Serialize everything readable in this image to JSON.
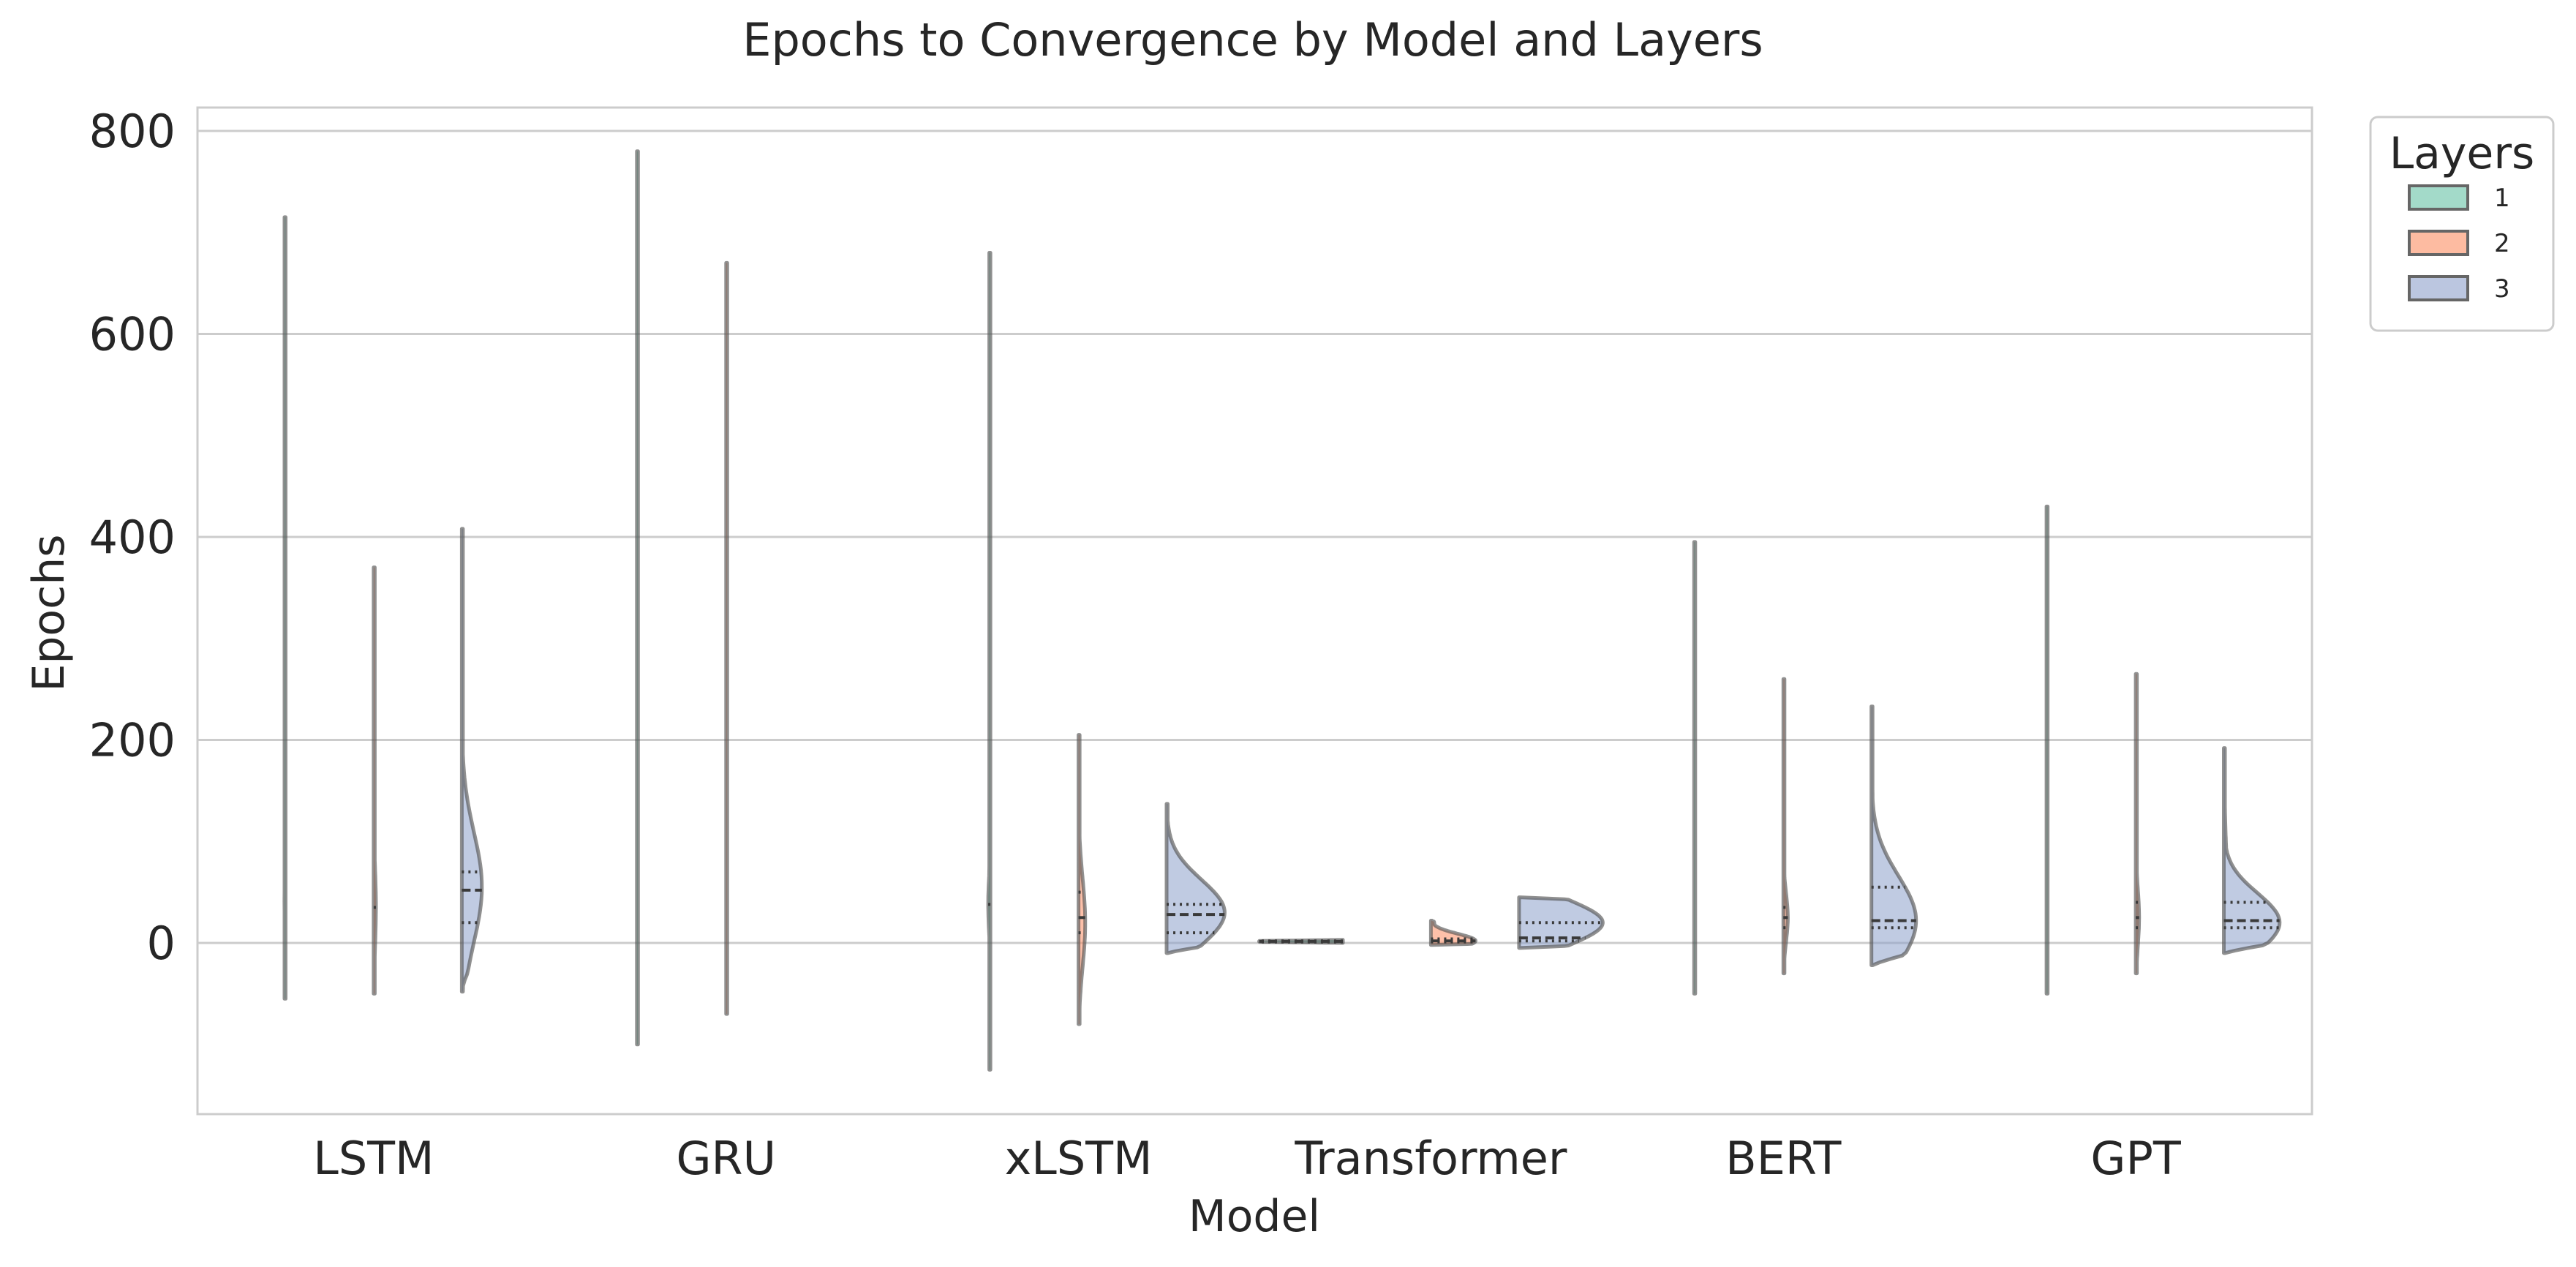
{
  "chart_data": {
    "type": "violin",
    "title": "Epochs to Convergence by Model and Layers",
    "xlabel": "Model",
    "ylabel": "Epochs",
    "categories": [
      "LSTM",
      "GRU",
      "xLSTM",
      "Transformer",
      "BERT",
      "GPT"
    ],
    "ylim": [
      -170,
      830
    ],
    "yticks": [
      0,
      200,
      400,
      600,
      800
    ],
    "grid": true,
    "legend": {
      "title": "Layers",
      "placement": "outside-top-right",
      "entries": [
        {
          "label": "1",
          "color": "#66c2a5"
        },
        {
          "label": "2",
          "color": "#fc8d62"
        },
        {
          "label": "3",
          "color": "#8da0cb"
        }
      ]
    },
    "series": [
      {
        "name": "1",
        "side": "left",
        "color": "#66c2a5",
        "groups": [
          {
            "category": "LSTM",
            "min": -55,
            "max": 715,
            "q1": 25,
            "median": 40,
            "q3": 60,
            "peak": 40,
            "spread": 1
          },
          {
            "category": "GRU",
            "min": -100,
            "max": 780,
            "q1": 20,
            "median": 45,
            "q3": 80,
            "peak": 45,
            "spread": 1
          },
          {
            "category": "xLSTM",
            "min": -125,
            "max": 680,
            "q1": 25,
            "median": 38,
            "q3": 48,
            "peak": 38,
            "spread": 2
          },
          {
            "category": "Transformer",
            "min": 0,
            "max": 3,
            "q1": 1,
            "median": 1.5,
            "q3": 2,
            "peak": 1.5,
            "spread": 200
          },
          {
            "category": "BERT",
            "min": -50,
            "max": 395,
            "q1": 15,
            "median": 25,
            "q3": 35,
            "peak": 25,
            "spread": 1
          },
          {
            "category": "GPT",
            "min": -50,
            "max": 430,
            "q1": 15,
            "median": 30,
            "q3": 45,
            "peak": 30,
            "spread": 1
          }
        ]
      },
      {
        "name": "2",
        "side": "right",
        "color": "#fc8d62",
        "groups": [
          {
            "category": "LSTM",
            "min": -50,
            "max": 370,
            "q1": 20,
            "median": 35,
            "q3": 55,
            "peak": 35,
            "spread": 2
          },
          {
            "category": "GRU",
            "min": -70,
            "max": 670,
            "q1": 20,
            "median": 45,
            "q3": 70,
            "peak": 45,
            "spread": 1
          },
          {
            "category": "xLSTM",
            "min": -80,
            "max": 205,
            "q1": 10,
            "median": 25,
            "q3": 50,
            "peak": 20,
            "spread": 6
          },
          {
            "category": "Transformer",
            "min": -2,
            "max": 22,
            "q1": 1,
            "median": 2,
            "q3": 4,
            "peak": 2,
            "spread": 40
          },
          {
            "category": "BERT",
            "min": -30,
            "max": 260,
            "q1": 15,
            "median": 25,
            "q3": 35,
            "peak": 25,
            "spread": 4
          },
          {
            "category": "GPT",
            "min": -30,
            "max": 265,
            "q1": 15,
            "median": 25,
            "q3": 40,
            "peak": 25,
            "spread": 3
          }
        ]
      },
      {
        "name": "3",
        "side": "right",
        "color": "#8da0cb",
        "groups": [
          {
            "category": "LSTM",
            "min": -48,
            "max": 408,
            "q1": 20,
            "median": 52,
            "q3": 70,
            "peak": 55,
            "spread": 18
          },
          {
            "category": "GRU",
            "min": 0,
            "max": 0,
            "q1": 0,
            "median": 0,
            "q3": 0,
            "peak": 0,
            "spread": 0
          },
          {
            "category": "xLSTM",
            "min": -10,
            "max": 137,
            "q1": 10,
            "median": 28,
            "q3": 38,
            "peak": 30,
            "spread": 52
          },
          {
            "category": "Transformer",
            "min": -5,
            "max": 45,
            "q1": 2,
            "median": 5,
            "q3": 20,
            "peak": 20,
            "spread": 75
          },
          {
            "category": "BERT",
            "min": -22,
            "max": 233,
            "q1": 15,
            "median": 22,
            "q3": 55,
            "peak": 22,
            "spread": 40
          },
          {
            "category": "GPT",
            "min": -10,
            "max": 192,
            "q1": 15,
            "median": 22,
            "q3": 40,
            "peak": 20,
            "spread": 50
          }
        ]
      }
    ]
  }
}
